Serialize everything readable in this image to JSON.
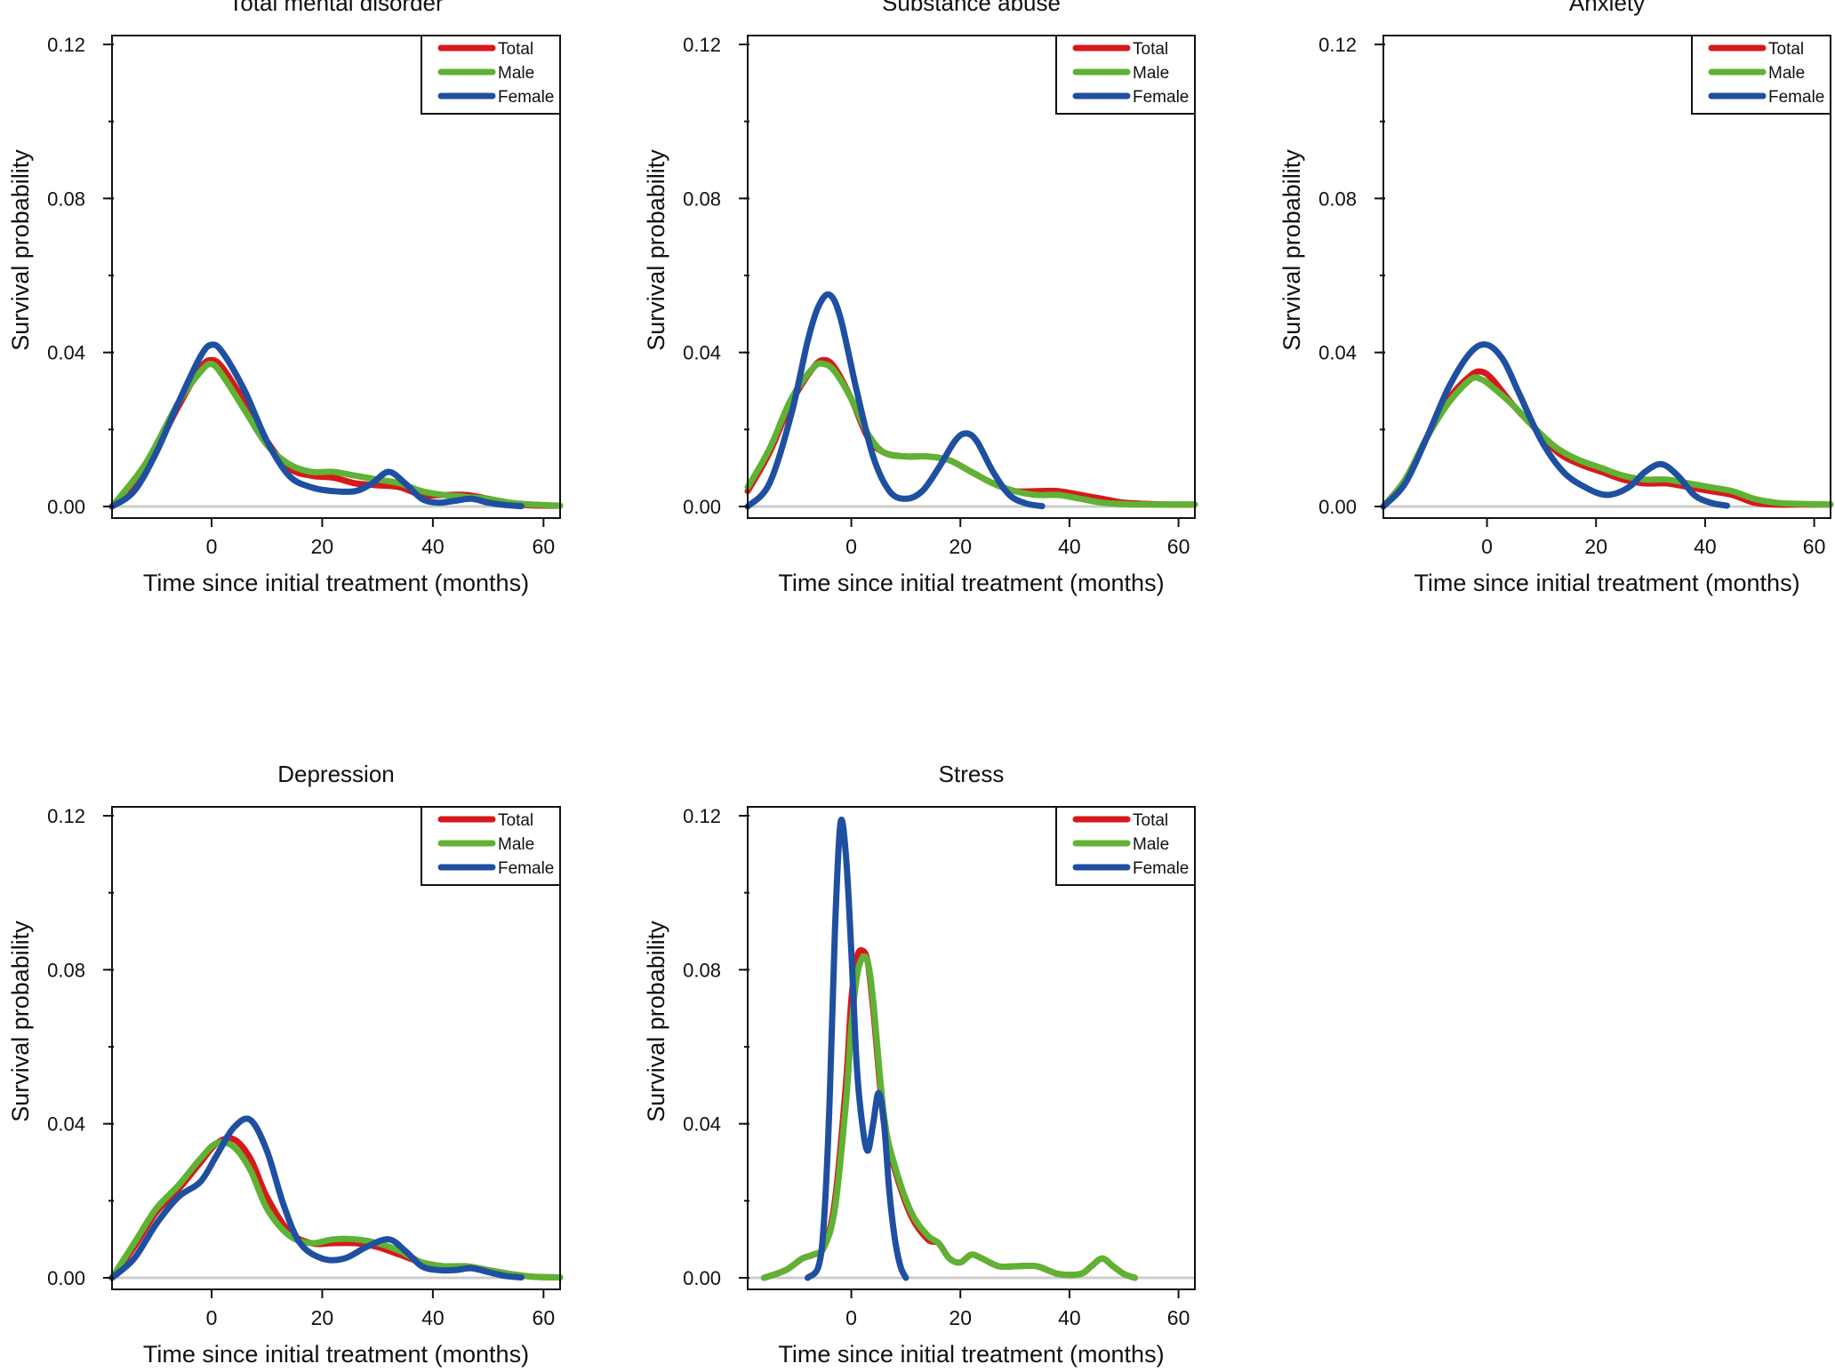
{
  "figure": {
    "xlabel": "Time since initial treatment (months)",
    "ylabel": "Survival probability"
  },
  "series_colors": {
    "Total": "#d7191c",
    "Male": "#5fb233",
    "Female": "#1f4fa0"
  },
  "chart_data": [
    {
      "type": "line",
      "title": "Total mental disorder",
      "xlabel": "Time since initial treatment (months)",
      "ylabel": "Survival probability",
      "xlim": [
        -18,
        63
      ],
      "ylim": [
        0,
        0.12
      ],
      "xticks": [
        0,
        20,
        40,
        60
      ],
      "yticks": [
        0.0,
        0.04,
        0.08,
        0.12
      ],
      "ytick_labels": [
        "0.00",
        "0.04",
        "0.08",
        "0.12"
      ],
      "legend": "top-right",
      "series": [
        {
          "name": "Total",
          "x": [
            -18,
            -12,
            -6,
            -2,
            0,
            2,
            6,
            10,
            14,
            18,
            22,
            26,
            30,
            34,
            38,
            42,
            46,
            50,
            54,
            58,
            63
          ],
          "y": [
            0.0,
            0.01,
            0.026,
            0.036,
            0.038,
            0.036,
            0.027,
            0.017,
            0.01,
            0.008,
            0.0075,
            0.006,
            0.0055,
            0.005,
            0.003,
            0.003,
            0.003,
            0.002,
            0.0008,
            0.0003,
            0.0002
          ]
        },
        {
          "name": "Male",
          "x": [
            -18,
            -12,
            -6,
            -2,
            0,
            2,
            6,
            10,
            14,
            18,
            22,
            26,
            30,
            34,
            38,
            42,
            46,
            50,
            54,
            58,
            63
          ],
          "y": [
            0.0,
            0.011,
            0.027,
            0.035,
            0.037,
            0.034,
            0.025,
            0.016,
            0.011,
            0.009,
            0.009,
            0.008,
            0.007,
            0.006,
            0.004,
            0.003,
            0.0025,
            0.002,
            0.001,
            0.0005,
            0.0002
          ]
        },
        {
          "name": "Female",
          "x": [
            -18,
            -14,
            -10,
            -6,
            -2,
            0,
            2,
            6,
            10,
            14,
            18,
            22,
            26,
            29,
            32,
            35,
            38,
            41,
            44,
            47,
            50,
            53,
            56
          ],
          "y": [
            0.0,
            0.004,
            0.014,
            0.027,
            0.039,
            0.042,
            0.04,
            0.03,
            0.017,
            0.008,
            0.005,
            0.004,
            0.004,
            0.006,
            0.009,
            0.006,
            0.002,
            0.001,
            0.0015,
            0.002,
            0.001,
            0.0004,
            0.0001
          ]
        }
      ]
    },
    {
      "type": "line",
      "title": "Substance abuse",
      "xlabel": "Time since initial treatment (months)",
      "ylabel": "Survival probability",
      "xlim": [
        -19,
        63
      ],
      "ylim": [
        0,
        0.12
      ],
      "xticks": [
        0,
        20,
        40,
        60
      ],
      "yticks": [
        0.0,
        0.04,
        0.08,
        0.12
      ],
      "ytick_labels": [
        "0.00",
        "0.04",
        "0.08",
        "0.12"
      ],
      "legend": "top-right",
      "series": [
        {
          "name": "Total",
          "x": [
            -19,
            -15,
            -11,
            -7,
            -5,
            -3,
            0,
            3,
            6,
            10,
            14,
            18,
            22,
            26,
            30,
            34,
            38,
            42,
            46,
            50,
            54,
            58,
            63
          ],
          "y": [
            0.004,
            0.014,
            0.027,
            0.036,
            0.038,
            0.036,
            0.028,
            0.018,
            0.014,
            0.013,
            0.013,
            0.012,
            0.009,
            0.006,
            0.004,
            0.004,
            0.004,
            0.003,
            0.002,
            0.001,
            0.0007,
            0.0005,
            0.0005
          ]
        },
        {
          "name": "Male",
          "x": [
            -19,
            -15,
            -11,
            -7,
            -5,
            -3,
            0,
            3,
            6,
            10,
            14,
            18,
            22,
            26,
            30,
            34,
            38,
            42,
            46,
            50,
            54,
            58,
            63
          ],
          "y": [
            0.005,
            0.015,
            0.028,
            0.036,
            0.037,
            0.035,
            0.028,
            0.019,
            0.014,
            0.013,
            0.013,
            0.012,
            0.009,
            0.006,
            0.004,
            0.003,
            0.003,
            0.002,
            0.001,
            0.0006,
            0.0005,
            0.0005,
            0.0005
          ]
        },
        {
          "name": "Female",
          "x": [
            -19,
            -15,
            -11,
            -8,
            -6,
            -4,
            -2,
            1,
            4,
            7,
            10,
            13,
            16,
            19,
            21,
            23,
            26,
            29,
            32,
            35
          ],
          "y": [
            0.0,
            0.006,
            0.024,
            0.043,
            0.052,
            0.055,
            0.049,
            0.03,
            0.013,
            0.004,
            0.002,
            0.004,
            0.01,
            0.017,
            0.019,
            0.017,
            0.009,
            0.003,
            0.0008,
            0.0001
          ]
        }
      ]
    },
    {
      "type": "line",
      "title": "Anxiety",
      "xlabel": "Time since initial treatment (months)",
      "ylabel": "Survival probability",
      "xlim": [
        -19,
        63
      ],
      "ylim": [
        0,
        0.12
      ],
      "xticks": [
        0,
        20,
        40,
        60
      ],
      "yticks": [
        0.0,
        0.04,
        0.08,
        0.12
      ],
      "ytick_labels": [
        "0.00",
        "0.04",
        "0.08",
        "0.12"
      ],
      "legend": "top-right",
      "series": [
        {
          "name": "Total",
          "x": [
            -19,
            -15,
            -11,
            -7,
            -3,
            -1,
            1,
            5,
            9,
            13,
            17,
            21,
            25,
            29,
            33,
            37,
            41,
            45,
            49,
            53,
            57,
            63
          ],
          "y": [
            0.0,
            0.007,
            0.018,
            0.028,
            0.034,
            0.035,
            0.033,
            0.026,
            0.02,
            0.014,
            0.011,
            0.009,
            0.007,
            0.006,
            0.006,
            0.005,
            0.004,
            0.003,
            0.001,
            0.0005,
            0.0005,
            0.0005
          ]
        },
        {
          "name": "Male",
          "x": [
            -19,
            -15,
            -11,
            -7,
            -3,
            -1,
            1,
            5,
            9,
            13,
            17,
            21,
            25,
            29,
            33,
            37,
            41,
            45,
            49,
            53,
            57,
            63
          ],
          "y": [
            0.0,
            0.007,
            0.018,
            0.027,
            0.033,
            0.033,
            0.031,
            0.026,
            0.02,
            0.015,
            0.012,
            0.01,
            0.008,
            0.007,
            0.007,
            0.006,
            0.005,
            0.004,
            0.002,
            0.001,
            0.0007,
            0.0005
          ]
        },
        {
          "name": "Female",
          "x": [
            -19,
            -15,
            -11,
            -7,
            -3,
            0,
            3,
            6,
            10,
            14,
            18,
            22,
            26,
            29,
            32,
            35,
            38,
            41,
            44
          ],
          "y": [
            0.0,
            0.006,
            0.018,
            0.031,
            0.04,
            0.042,
            0.038,
            0.029,
            0.017,
            0.009,
            0.005,
            0.003,
            0.005,
            0.009,
            0.011,
            0.008,
            0.003,
            0.001,
            0.0002
          ]
        }
      ]
    },
    {
      "type": "line",
      "title": "Depression",
      "xlabel": "Time since initial treatment (months)",
      "ylabel": "Survival probability",
      "xlim": [
        -18,
        63
      ],
      "ylim": [
        0,
        0.12
      ],
      "xticks": [
        0,
        20,
        40,
        60
      ],
      "yticks": [
        0.0,
        0.04,
        0.08,
        0.12
      ],
      "ytick_labels": [
        "0.00",
        "0.04",
        "0.08",
        "0.12"
      ],
      "legend": "top-right",
      "series": [
        {
          "name": "Total",
          "x": [
            -18,
            -14,
            -10,
            -6,
            -2,
            1,
            4,
            7,
            10,
            14,
            18,
            22,
            26,
            30,
            34,
            38,
            42,
            46,
            50,
            54,
            58,
            63
          ],
          "y": [
            0.0,
            0.008,
            0.017,
            0.023,
            0.03,
            0.035,
            0.036,
            0.031,
            0.021,
            0.012,
            0.009,
            0.009,
            0.009,
            0.008,
            0.006,
            0.004,
            0.003,
            0.003,
            0.002,
            0.001,
            0.0003,
            0.0001
          ]
        },
        {
          "name": "Male",
          "x": [
            -18,
            -14,
            -10,
            -6,
            -2,
            1,
            4,
            7,
            10,
            14,
            18,
            22,
            26,
            30,
            34,
            38,
            42,
            46,
            50,
            54,
            58,
            63
          ],
          "y": [
            0.0,
            0.009,
            0.018,
            0.024,
            0.031,
            0.035,
            0.034,
            0.028,
            0.018,
            0.011,
            0.009,
            0.01,
            0.01,
            0.009,
            0.007,
            0.004,
            0.003,
            0.003,
            0.002,
            0.001,
            0.0003,
            0.0001
          ]
        },
        {
          "name": "Female",
          "x": [
            -18,
            -14,
            -10,
            -6,
            -2,
            1,
            4,
            7,
            10,
            13,
            16,
            20,
            24,
            28,
            32,
            35,
            38,
            41,
            44,
            47,
            50,
            53,
            56
          ],
          "y": [
            0.0,
            0.005,
            0.014,
            0.021,
            0.025,
            0.032,
            0.039,
            0.041,
            0.033,
            0.019,
            0.009,
            0.005,
            0.005,
            0.008,
            0.01,
            0.007,
            0.003,
            0.002,
            0.002,
            0.0025,
            0.0015,
            0.0005,
            0.0001
          ]
        }
      ]
    },
    {
      "type": "line",
      "title": "Stress",
      "xlabel": "Time since initial treatment (months)",
      "ylabel": "Survival probability",
      "xlim": [
        -19,
        63
      ],
      "ylim": [
        0,
        0.12
      ],
      "xticks": [
        0,
        20,
        40,
        60
      ],
      "yticks": [
        0.0,
        0.04,
        0.08,
        0.12
      ],
      "ytick_labels": [
        "0.00",
        "0.04",
        "0.08",
        "0.12"
      ],
      "legend": "top-right",
      "series": [
        {
          "name": "Total",
          "x": [
            -16,
            -12,
            -9,
            -7,
            -5,
            -3,
            -1,
            0,
            1,
            2,
            3,
            4,
            6,
            8,
            11,
            14,
            16,
            18,
            20,
            22,
            24,
            27,
            30,
            34,
            38,
            42,
            44,
            46,
            48,
            50,
            52
          ],
          "y": [
            0.0,
            0.002,
            0.005,
            0.006,
            0.008,
            0.02,
            0.05,
            0.072,
            0.083,
            0.085,
            0.082,
            0.07,
            0.04,
            0.028,
            0.016,
            0.01,
            0.009,
            0.005,
            0.004,
            0.006,
            0.005,
            0.003,
            0.003,
            0.003,
            0.001,
            0.001,
            0.003,
            0.005,
            0.003,
            0.001,
            0.0
          ]
        },
        {
          "name": "Male",
          "x": [
            -16,
            -12,
            -9,
            -7,
            -5,
            -3,
            -1,
            0,
            1,
            2,
            3,
            4,
            6,
            8,
            11,
            14,
            16,
            18,
            20,
            22,
            24,
            27,
            30,
            34,
            38,
            42,
            44,
            46,
            48,
            50,
            52
          ],
          "y": [
            0.0,
            0.002,
            0.005,
            0.006,
            0.008,
            0.018,
            0.045,
            0.065,
            0.078,
            0.083,
            0.082,
            0.072,
            0.042,
            0.029,
            0.017,
            0.011,
            0.009,
            0.005,
            0.004,
            0.006,
            0.005,
            0.003,
            0.003,
            0.003,
            0.001,
            0.001,
            0.003,
            0.005,
            0.003,
            0.001,
            0.0
          ]
        },
        {
          "name": "Female",
          "x": [
            -8,
            -6,
            -5,
            -4,
            -3,
            -2,
            -1,
            0,
            1,
            2,
            3,
            4,
            5,
            6,
            7,
            8,
            9,
            10
          ],
          "y": [
            0.0,
            0.003,
            0.015,
            0.045,
            0.09,
            0.118,
            0.11,
            0.085,
            0.055,
            0.04,
            0.033,
            0.04,
            0.048,
            0.04,
            0.022,
            0.01,
            0.003,
            0.0
          ]
        }
      ]
    }
  ]
}
